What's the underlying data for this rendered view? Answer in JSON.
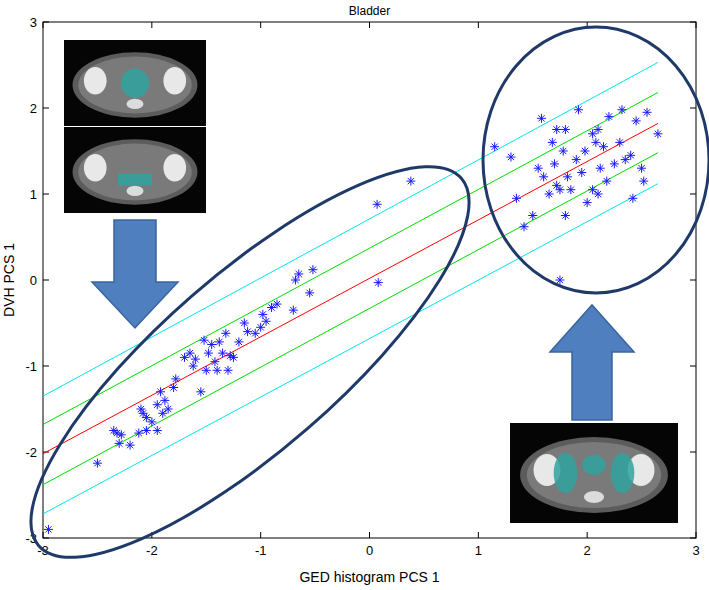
{
  "chart_data": {
    "type": "scatter",
    "title": "Bladder",
    "x_label": "GED histogram PCS 1",
    "y_label": "DVH PCS 1",
    "xlim": [
      -3,
      3
    ],
    "ylim": [
      -3,
      3
    ],
    "xticks": [
      -3,
      -2,
      -1,
      0,
      1,
      2,
      3
    ],
    "yticks": [
      -3,
      -2,
      -1,
      0,
      1,
      2,
      3
    ],
    "grid": false,
    "series": [
      {
        "type": "line",
        "color": "#00e5ee",
        "line_style": "solid",
        "x": [
          -3,
          2.65
        ],
        "values": [
          -1.35,
          2.53
        ]
      },
      {
        "type": "line",
        "color": "#00dd00",
        "line_style": "solid",
        "x": [
          -3,
          2.65
        ],
        "values": [
          -1.68,
          2.18
        ]
      },
      {
        "type": "line",
        "color": "#ff0000",
        "line_style": "solid",
        "x": [
          -3,
          2.65
        ],
        "values": [
          -2.02,
          1.82
        ]
      },
      {
        "type": "line",
        "color": "#00dd00",
        "line_style": "solid",
        "x": [
          -3,
          2.65
        ],
        "values": [
          -2.38,
          1.48
        ]
      },
      {
        "type": "line",
        "color": "#00e5ee",
        "line_style": "solid",
        "x": [
          -3,
          2.65
        ],
        "values": [
          -2.72,
          1.12
        ]
      },
      {
        "type": "scatter",
        "color": "#1a1aff",
        "marker": "asterisk",
        "x": [
          -2.95,
          -2.5,
          -2.35,
          -2.32,
          -2.28,
          -2.3,
          -2.2,
          -2.12,
          -2.1,
          -2.08,
          -2.05,
          -2.05,
          -2.0,
          -1.95,
          -1.95,
          -1.9,
          -1.88,
          -1.85,
          -1.92,
          -1.8,
          -1.78,
          -1.7,
          -1.65,
          -1.62,
          -1.6,
          -1.55,
          -1.52,
          -1.5,
          -1.48,
          -1.45,
          -1.42,
          -1.4,
          -1.38,
          -1.35,
          -1.32,
          -1.3,
          -1.28,
          -1.25,
          -1.2,
          -1.15,
          -1.12,
          -1.05,
          -1.0,
          -0.98,
          -0.95,
          -0.9,
          -0.85,
          -0.7,
          -0.68,
          -0.65,
          -0.55,
          -0.52,
          0.07,
          0.08,
          0.38,
          1.15,
          1.3,
          1.35,
          1.42,
          1.5,
          1.55,
          1.58,
          1.65,
          1.68,
          1.7,
          1.72,
          1.72,
          1.75,
          1.75,
          1.78,
          1.8,
          1.8,
          1.82,
          1.85,
          1.9,
          1.92,
          1.95,
          1.98,
          2.0,
          2.05,
          2.05,
          2.08,
          2.1,
          2.12,
          2.15,
          2.18,
          2.2,
          2.25,
          2.3,
          2.32,
          2.35,
          2.4,
          2.42,
          2.45,
          2.5,
          2.52,
          2.55,
          2.65,
          2.1,
          1.6
        ],
        "values": [
          -2.9,
          -2.13,
          -1.75,
          -1.78,
          -1.8,
          -1.9,
          -1.92,
          -1.78,
          -1.5,
          -1.55,
          -1.6,
          -1.75,
          -1.65,
          -1.45,
          -1.75,
          -1.55,
          -1.4,
          -1.5,
          -1.3,
          -1.25,
          -1.15,
          -0.9,
          -0.85,
          -1.0,
          -0.92,
          -1.3,
          -0.7,
          -1.05,
          -0.85,
          -0.75,
          -0.95,
          -1.05,
          -0.72,
          -0.85,
          -0.62,
          -1.05,
          -0.88,
          -0.9,
          -0.72,
          -0.5,
          -0.6,
          -0.62,
          -0.55,
          -0.4,
          -0.48,
          -0.32,
          -0.28,
          -0.35,
          0.0,
          0.07,
          -0.15,
          0.12,
          0.88,
          -0.03,
          1.15,
          1.55,
          1.43,
          0.95,
          0.62,
          0.75,
          1.3,
          1.88,
          1.0,
          1.6,
          1.35,
          1.1,
          1.75,
          0.0,
          1.05,
          1.5,
          1.75,
          0.75,
          1.2,
          1.05,
          1.4,
          1.98,
          1.25,
          1.5,
          0.9,
          1.7,
          1.05,
          1.6,
          1.75,
          1.3,
          1.55,
          1.15,
          1.9,
          1.35,
          1.6,
          1.98,
          1.4,
          1.45,
          0.95,
          1.85,
          1.3,
          1.15,
          1.95,
          1.7,
          1.0,
          1.2
        ]
      }
    ]
  }
}
